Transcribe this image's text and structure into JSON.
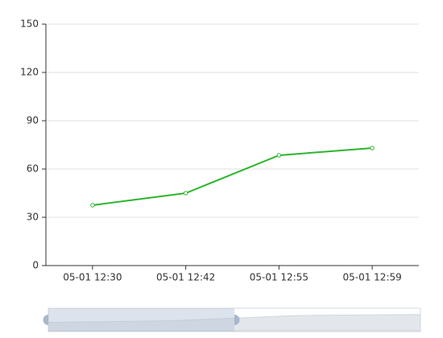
{
  "chart_data": {
    "type": "line",
    "categories": [
      "05-01 12:30",
      "05-01 12:42",
      "05-01 12:55",
      "05-01 12:59"
    ],
    "values": [
      37.5,
      45,
      68.5,
      73
    ],
    "color": "#2db52d",
    "ylim": [
      0,
      150
    ],
    "yticks": [
      0,
      30,
      60,
      90,
      120,
      150
    ],
    "grid": true
  }
}
